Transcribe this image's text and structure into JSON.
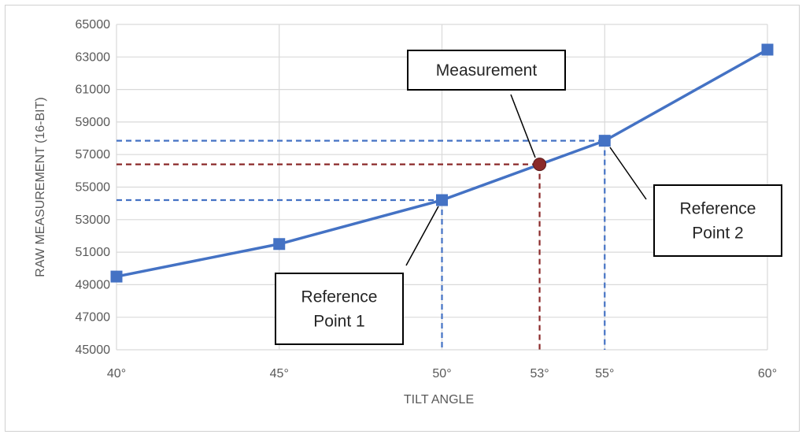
{
  "chart_data": {
    "type": "line",
    "title": "",
    "xlabel": "TILT ANGLE",
    "ylabel": "RAW MEASUREMENT (16-BIT)",
    "xlim": [
      40,
      60
    ],
    "ylim": [
      45000,
      65000
    ],
    "grid": true,
    "y_ticks": [
      {
        "value": 45000,
        "label": "45000"
      },
      {
        "value": 47000,
        "label": "47000"
      },
      {
        "value": 49000,
        "label": "49000"
      },
      {
        "value": 51000,
        "label": "51000"
      },
      {
        "value": 53000,
        "label": "53000"
      },
      {
        "value": 55000,
        "label": "55000"
      },
      {
        "value": 57000,
        "label": "57000"
      },
      {
        "value": 59000,
        "label": "59000"
      },
      {
        "value": 61000,
        "label": "61000"
      },
      {
        "value": 63000,
        "label": "63000"
      },
      {
        "value": 65000,
        "label": "65000"
      }
    ],
    "x_ticks": [
      {
        "value": 40,
        "label": "40°",
        "color": "#595959"
      },
      {
        "value": 45,
        "label": "45°",
        "color": "#595959"
      },
      {
        "value": 50,
        "label": "50°",
        "color": "#595959"
      },
      {
        "value": 53,
        "label": "53°",
        "color": "#7b2a2a"
      },
      {
        "value": 55,
        "label": "55°",
        "color": "#595959"
      },
      {
        "value": 60,
        "label": "60°",
        "color": "#595959"
      }
    ],
    "series": [
      {
        "color": "#4472c4",
        "marker": "square",
        "points": [
          {
            "x": 40,
            "y": 49500
          },
          {
            "x": 45,
            "y": 51500
          },
          {
            "x": 50,
            "y": 54200
          },
          {
            "x": 55,
            "y": 57850
          },
          {
            "x": 60,
            "y": 63450
          }
        ]
      }
    ],
    "measurement": {
      "x": 53,
      "y": 56400,
      "color": "#8b2a2a"
    },
    "guides": [
      {
        "x": 50,
        "y": 54200,
        "color": "#4472c4"
      },
      {
        "x": 55,
        "y": 57850,
        "color": "#4472c4"
      },
      {
        "x": 53,
        "y": 56400,
        "color": "#8b2a2a"
      }
    ],
    "annotations": [
      {
        "name": "measurement-callout",
        "lines": [
          "Measurement"
        ],
        "target_x": 53,
        "target_y": 56400
      },
      {
        "name": "reference-point-1-callout",
        "lines": [
          "Reference",
          "Point 1"
        ],
        "target_x": 50,
        "target_y": 54200
      },
      {
        "name": "reference-point-2-callout",
        "lines": [
          "Reference",
          "Point 2"
        ],
        "target_x": 55,
        "target_y": 57850
      }
    ]
  }
}
